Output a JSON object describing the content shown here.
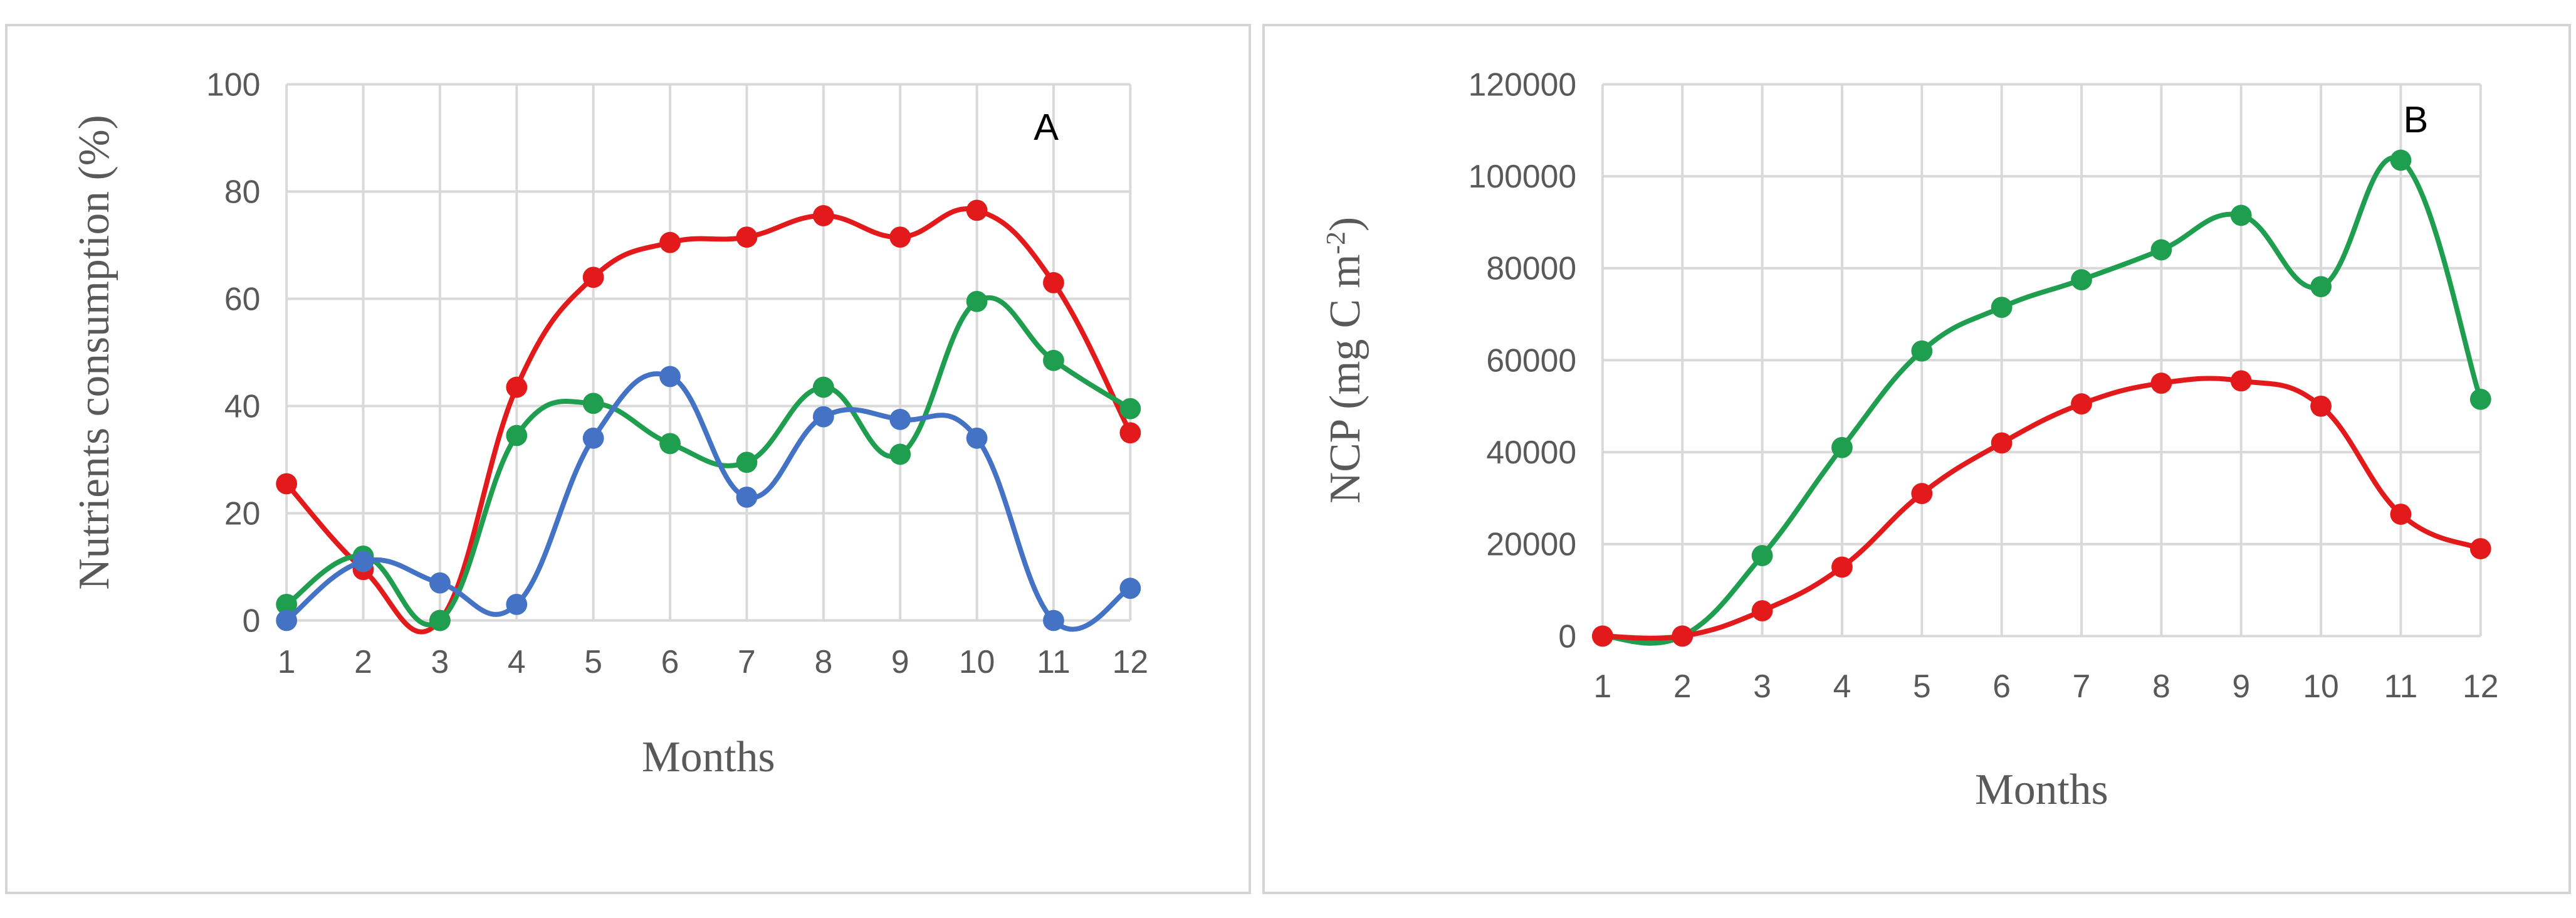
{
  "chart_data": [
    {
      "type": "line",
      "panel_label": "A",
      "xlabel": "Months",
      "ylabel": "Nutrients consumption (%)",
      "categories": [
        "1",
        "2",
        "3",
        "4",
        "5",
        "6",
        "7",
        "8",
        "9",
        "10",
        "11",
        "12"
      ],
      "ylim": [
        0,
        100
      ],
      "yticks": [
        0,
        20,
        40,
        60,
        80,
        100
      ],
      "grid": true,
      "smooth": true,
      "series": [
        {
          "color": "#e31a1c",
          "values": [
            25.5,
            9.5,
            0,
            43.5,
            64,
            70.5,
            71.5,
            75.5,
            71.5,
            76.5,
            63,
            35
          ]
        },
        {
          "color": "#1f9e4f",
          "values": [
            3,
            12,
            0,
            34.5,
            40.5,
            33,
            29.5,
            43.5,
            31,
            59.5,
            48.5,
            39.5
          ]
        },
        {
          "color": "#4472c4",
          "values": [
            0,
            11,
            7,
            3,
            34,
            45.5,
            23,
            38,
            37.5,
            34,
            0,
            6
          ]
        }
      ]
    },
    {
      "type": "line",
      "panel_label": "B",
      "xlabel": "Months",
      "ylabel": "NCP (mg C m",
      "ylabel_sup": "-2",
      "ylabel_end": ")",
      "categories": [
        "1",
        "2",
        "3",
        "4",
        "5",
        "6",
        "7",
        "8",
        "9",
        "10",
        "11",
        "12"
      ],
      "ylim": [
        0,
        120000
      ],
      "yticks": [
        0,
        20000,
        40000,
        60000,
        80000,
        100000,
        120000
      ],
      "grid": true,
      "smooth": true,
      "series": [
        {
          "color": "#1f9e4f",
          "values": [
            0,
            0,
            17500,
            41000,
            62000,
            71500,
            77500,
            84000,
            91500,
            76000,
            103500,
            51500
          ]
        },
        {
          "color": "#e31a1c",
          "values": [
            0,
            0,
            5500,
            15000,
            31000,
            42000,
            50500,
            55000,
            55500,
            50000,
            26500,
            19000
          ]
        }
      ]
    }
  ]
}
